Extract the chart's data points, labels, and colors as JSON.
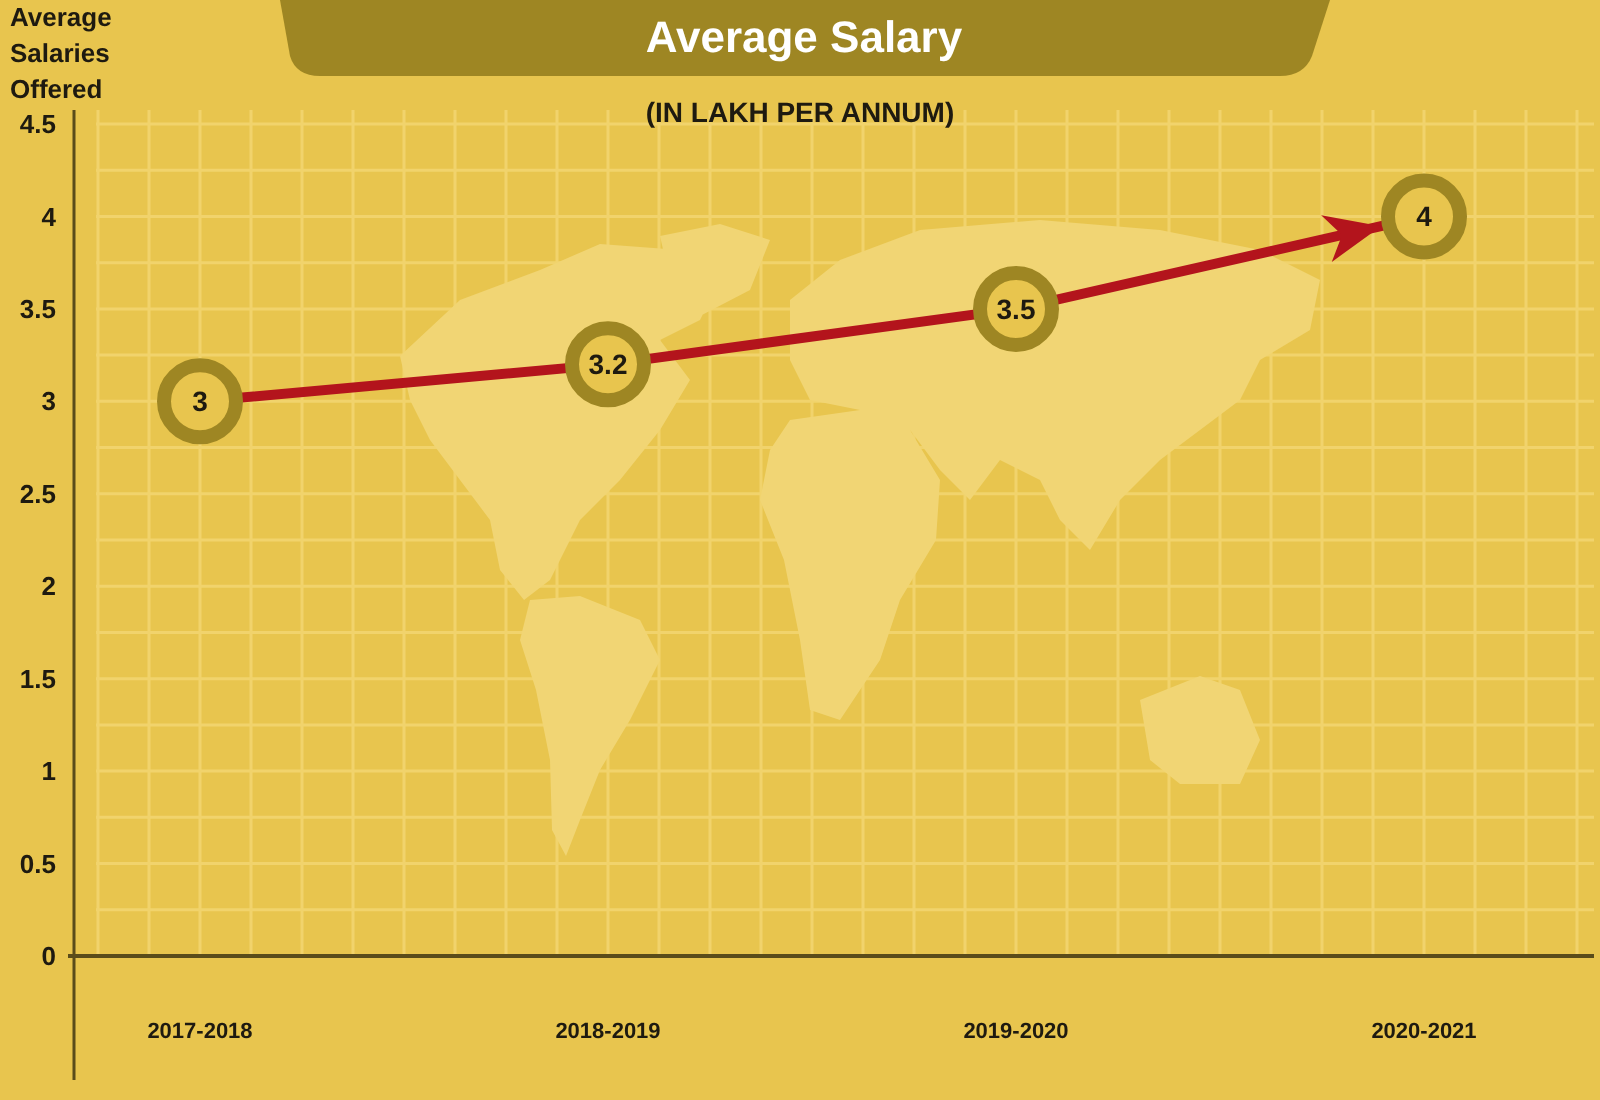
{
  "chart_data": {
    "type": "line",
    "title": "Average Salary",
    "subtitle": "(IN LAKH PER ANNUM)",
    "ylabel": "Average Salaries Offered",
    "categories": [
      "2017-2018",
      "2018-2019",
      "2019-2020",
      "2020-2021"
    ],
    "values": [
      3,
      3.2,
      3.5,
      4
    ],
    "color": "#b3141c",
    "ylim": [
      0,
      4.5
    ],
    "yticks": [
      0,
      0.5,
      1,
      1.5,
      2,
      2.5,
      3,
      3.5,
      4,
      4.5
    ],
    "grid": true,
    "marker": "circle",
    "data_labels": true
  }
}
